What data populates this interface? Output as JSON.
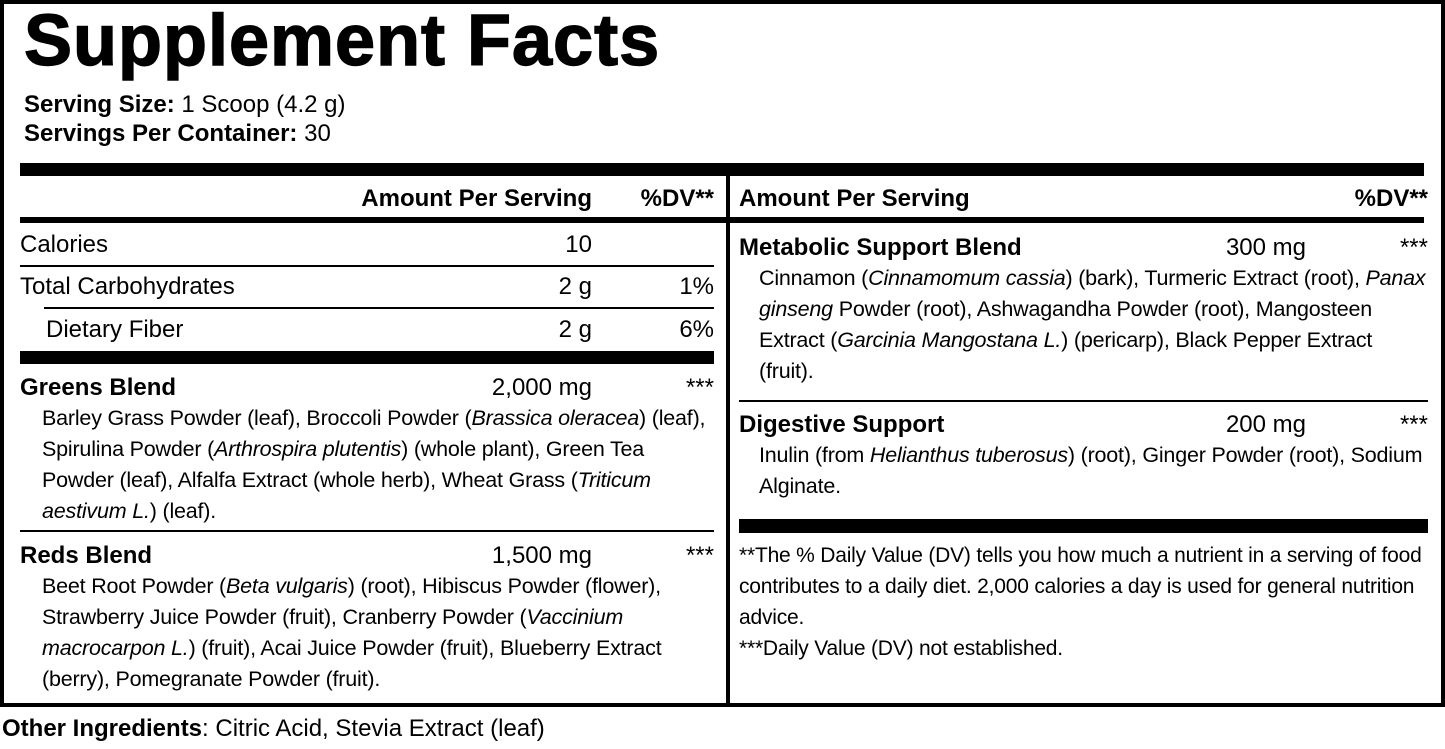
{
  "title": "Supplement Facts",
  "serving_info": {
    "serving_size_label": "Serving Size:",
    "serving_size_value": " 1 Scoop (4.2 g)",
    "servings_per_container_label": "Servings Per Container:",
    "servings_per_container_value": " 30"
  },
  "table": {
    "left_column": {
      "header": {
        "amount_label": "Amount Per Serving",
        "dv_label": "%DV**"
      },
      "nutrients": [
        {
          "name": "Calories",
          "amount": "10",
          "dv": ""
        },
        {
          "name": "Total Carbohydrates",
          "amount": "2 g",
          "dv": "1%"
        },
        {
          "name": "Dietary Fiber",
          "amount": "2 g",
          "dv": "6%"
        }
      ],
      "blends": [
        {
          "name": "Greens Blend",
          "amount": "2,000 mg",
          "dv": "***",
          "ingredients": [
            {
              "text": "Barley Grass Powder (leaf), Broccoli Powder (",
              "italic": false
            },
            {
              "text": "Brassica oleracea",
              "italic": true
            },
            {
              "text": ") (leaf), Spirulina Powder (",
              "italic": false
            },
            {
              "text": "Arthrospira plutentis",
              "italic": true
            },
            {
              "text": ") (whole plant), Green Tea Powder (leaf), Alfalfa Extract (whole herb), Wheat Grass (",
              "italic": false
            },
            {
              "text": "Triticum aestivum L.",
              "italic": true
            },
            {
              "text": ") (leaf).",
              "italic": false
            }
          ]
        },
        {
          "name": "Reds Blend",
          "amount": "1,500 mg",
          "dv": "***",
          "ingredients": [
            {
              "text": "Beet Root Powder (",
              "italic": false
            },
            {
              "text": "Beta vulgaris",
              "italic": true
            },
            {
              "text": ") (root), Hibiscus Powder (flower), Strawberry Juice Powder (fruit), Cranberry Powder (",
              "italic": false
            },
            {
              "text": "Vaccinium macrocarpon L.",
              "italic": true
            },
            {
              "text": ") (fruit), Acai Juice Powder (fruit), Blueberry Extract (berry), Pomegranate Powder (fruit).",
              "italic": false
            }
          ]
        }
      ]
    },
    "right_column": {
      "header": {
        "amount_label": "Amount Per Serving",
        "dv_label": "%DV**"
      },
      "blends": [
        {
          "name": "Metabolic Support Blend",
          "amount": "300 mg",
          "dv": "***",
          "ingredients": [
            {
              "text": "Cinnamon (",
              "italic": false
            },
            {
              "text": "Cinnamomum cassia",
              "italic": true
            },
            {
              "text": ") (bark), Turmeric Extract (root), ",
              "italic": false
            },
            {
              "text": "Panax ginseng",
              "italic": true
            },
            {
              "text": " Powder (root), Ashwagandha Powder (root), Mangosteen Extract (",
              "italic": false
            },
            {
              "text": "Garcinia Mangostana L.",
              "italic": true
            },
            {
              "text": ") (pericarp), Black Pepper Extract (fruit).",
              "italic": false
            }
          ]
        },
        {
          "name": "Digestive Support",
          "amount": "200 mg",
          "dv": "***",
          "ingredients": [
            {
              "text": "Inulin (from ",
              "italic": false
            },
            {
              "text": "Helianthus tuberosus",
              "italic": true
            },
            {
              "text": ") (root), Ginger Powder (root), Sodium Alginate.",
              "italic": false
            }
          ]
        }
      ],
      "footnotes": [
        "**The % Daily Value (DV) tells you how much a nutrient in a serving of food contributes to a daily diet. 2,000 calories a day is used for general nutrition advice.",
        "***Daily Value (DV) not established."
      ]
    }
  },
  "other_ingredients": {
    "label": "Other Ingredients",
    "value": ": Citric Acid, Stevia Extract (leaf)"
  },
  "colors": {
    "text": "#000000",
    "background": "#ffffff"
  }
}
